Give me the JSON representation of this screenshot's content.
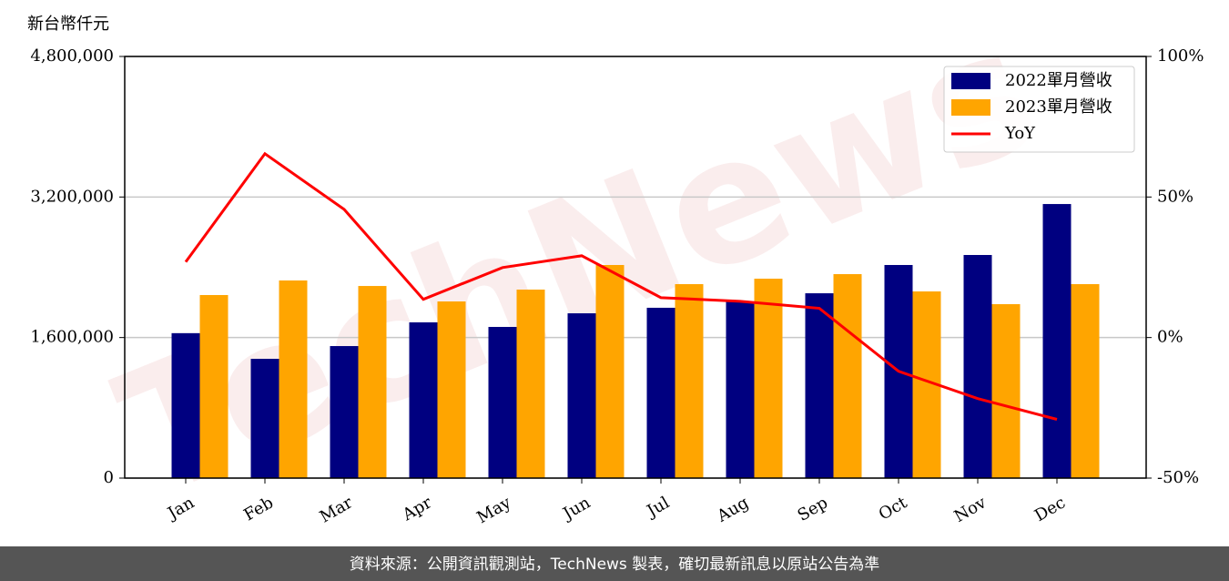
{
  "chart_data": {
    "type": "bar",
    "y_label": "新台幣仟元",
    "watermark": "TechNews",
    "footer": "資料來源：公開資訊觀測站，TechNews 製表，確切最新訊息以原站公告為準",
    "categories": [
      "Jan",
      "Feb",
      "Mar",
      "Apr",
      "May",
      "Jun",
      "Jul",
      "Aug",
      "Sep",
      "Oct",
      "Nov",
      "Dec"
    ],
    "series": [
      {
        "name": "2022單月營收",
        "color": "#000080",
        "type": "bar",
        "values": [
          1650000,
          1358000,
          1503000,
          1773000,
          1721000,
          1876000,
          1939000,
          2011000,
          2104000,
          2426000,
          2540000,
          3120000
        ]
      },
      {
        "name": "2023單月營收",
        "color": "#ffa500",
        "type": "bar",
        "values": [
          2084000,
          2250000,
          2187000,
          2011000,
          2146000,
          2426000,
          2208000,
          2270000,
          2322000,
          2125000,
          1980000,
          2208000
        ]
      },
      {
        "name": "YoY",
        "color": "#ff0000",
        "type": "line",
        "axis": "y2",
        "values": [
          26.9,
          65.4,
          45.6,
          13.6,
          24.9,
          29.1,
          14.2,
          12.9,
          10.4,
          -12.0,
          -21.7,
          -29.1
        ]
      }
    ],
    "ylim": [
      0,
      4800000
    ],
    "yticks": [
      0,
      {
        "value": 1600000,
        "label": "1,600,000"
      },
      {
        "value": 3200000,
        "label": "3,200,000"
      },
      {
        "value": 4800000,
        "label": "4,800,000"
      }
    ],
    "y2lim": [
      -50,
      100
    ],
    "y2ticks": [
      {
        "value": -50,
        "label": "-50%"
      },
      {
        "value": 0,
        "label": "0%"
      },
      {
        "value": 50,
        "label": "50%"
      },
      {
        "value": 100,
        "label": "100%"
      }
    ],
    "grid": true,
    "legend": "upper right"
  }
}
